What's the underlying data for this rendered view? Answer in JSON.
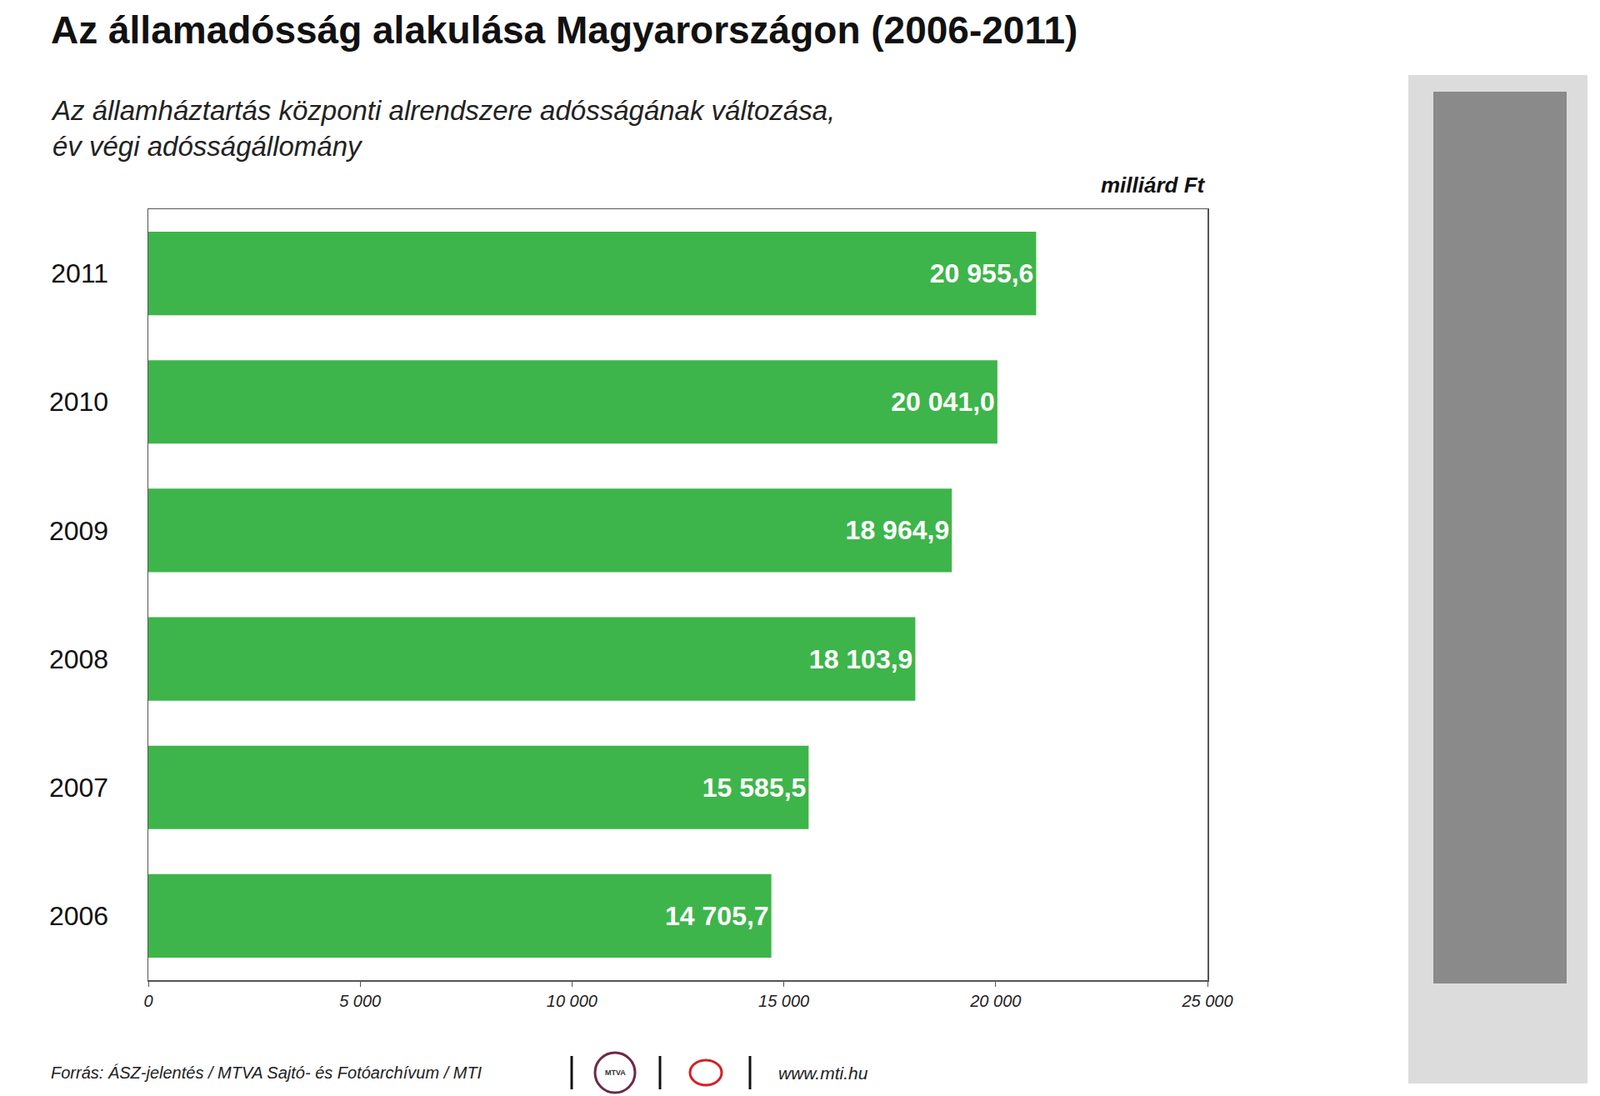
{
  "chart_data": {
    "type": "bar",
    "orientation": "horizontal",
    "title": "Az államadósság alakulása Magyarországon (2006-2011)",
    "subtitle": [
      "Az államháztartás központi alrendszere adósságának változása,",
      "év végi adósságállomány"
    ],
    "unit_label": "milliárd Ft",
    "source": "Forrás: ÁSZ-jelentés / MTVA Sajtó- és Fotóarchívum / MTI",
    "logo_text": "MTVA",
    "website": "www.mti.hu",
    "categories": [
      "2006",
      "2007",
      "2008",
      "2009",
      "2010",
      "2011"
    ],
    "values": [
      14705.7,
      15585.5,
      18103.9,
      18964.9,
      20041.0,
      20955.6
    ],
    "value_labels": [
      "14 705,7",
      "15 585,5",
      "18 103,9",
      "18 964,9",
      "20 041,0",
      "20 955,6"
    ],
    "color": "#3db54a",
    "data_labels": true,
    "grid": false,
    "xlim": [
      0,
      25000
    ],
    "xticks": [
      0,
      {
        "value": 5000,
        "label": "5 000"
      },
      {
        "value": 10000,
        "label": "10 000"
      },
      {
        "value": 15000,
        "label": "15 000"
      },
      {
        "value": 20000,
        "label": "20 000"
      },
      {
        "value": 25000,
        "label": "25 000"
      }
    ]
  }
}
